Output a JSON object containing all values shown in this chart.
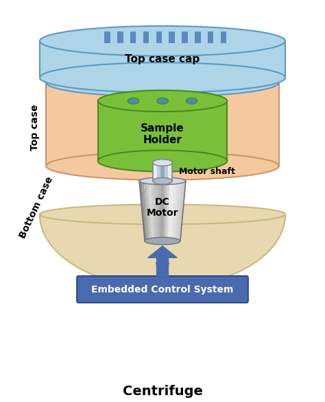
{
  "title": "Centrifuge",
  "top_case_cap_label": "Top case cap",
  "top_case_label": "Top case",
  "sample_holder_label": "Sample\nHolder",
  "motor_shaft_label": "Motor shaft",
  "dc_motor_label": "DC\nMotor",
  "bottom_case_label": "Bottom case",
  "ecs_label": "Embedded Control System",
  "colors": {
    "top_cap_fill": "#aed4e8",
    "top_cap_edge": "#5a9abf",
    "top_case_fill": "#f4c9a0",
    "top_case_edge": "#c8966a",
    "sample_holder_fill": "#7abf3a",
    "sample_holder_edge": "#4a8a1a",
    "sample_hole_fill": "#4a8abf",
    "shaft_fill_light": "#d0d8e0",
    "shaft_fill_dark": "#808898",
    "motor_fill_light": "#c8d0d8",
    "motor_fill_dark": "#606878",
    "bottom_case_fill": "#e8d8b0",
    "bottom_case_edge": "#c8b880",
    "ecs_fill": "#4a6aaf",
    "ecs_edge": "#2a4a8f",
    "arrow_fill": "#4a6aaf",
    "stripe_color": "#5a8abf",
    "background": "#ffffff",
    "text_dark": "#000000",
    "text_white": "#ffffff"
  },
  "figsize": [
    4.74,
    5.87
  ],
  "dpi": 100
}
